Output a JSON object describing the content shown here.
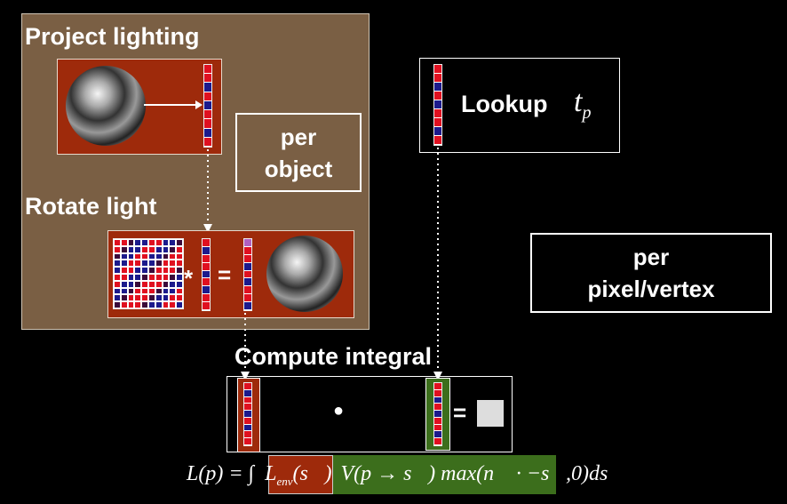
{
  "panel": {
    "project_heading": "Project lighting",
    "rotate_heading": "Rotate light",
    "per_object_line1": "per",
    "per_object_line2": "object"
  },
  "lookup": {
    "label": "Lookup",
    "symbol": "t",
    "subscript": "p"
  },
  "per_pixel": {
    "line1": "per",
    "line2": "pixel/vertex"
  },
  "compute": {
    "heading": "Compute integral",
    "dot": "●",
    "equals": "="
  },
  "rotate_ops": {
    "star": "*",
    "equals": "="
  },
  "formula": {
    "lhs": "L(p) = ∫",
    "env": "L",
    "env_sub": "env",
    "env_arg": "(s⃗)",
    "vis": "V(p → s⃗) max(n⃗ · −s⃗,0)ds⃗"
  },
  "colors": {
    "panel_bg": "#7a5f44",
    "red_box": "#9e2a0b",
    "green_box": "#3c6e1c",
    "cell_red": "#e01020",
    "cell_blue": "#1c1a8c",
    "cell_dark": "#3a0a3a"
  }
}
